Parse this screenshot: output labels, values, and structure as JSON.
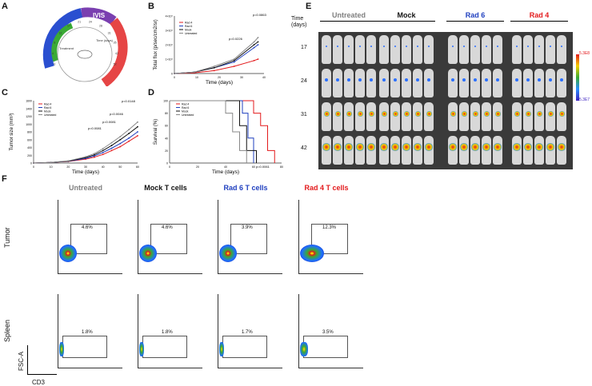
{
  "panels": {
    "a": "A",
    "b": "B",
    "c": "C",
    "d": "D",
    "e": "E",
    "f": "F"
  },
  "a": {
    "ivis": "IVIS",
    "ticks": [
      "0",
      "4",
      "8",
      "12",
      "17",
      "21",
      "24",
      "28",
      "31",
      "35",
      "42",
      "52"
    ],
    "treat": "Treatment",
    "days": "Time (days)"
  },
  "chart_b": {
    "type": "line",
    "title": "",
    "xlabel": "Time (days)",
    "ylabel": "Total flux (p/sec/cm2/sr)",
    "yticks": [
      "0",
      "1×10⁸",
      "2×10⁸",
      "3×10⁸",
      "4×10⁸"
    ],
    "xticks": [
      "0",
      "10",
      "20",
      "30",
      "40"
    ],
    "legend": [
      "Rad 4",
      "Rad 6",
      "Mock",
      "Untreated"
    ],
    "series": [
      {
        "name": "Rad 4",
        "color": "#e31a1c",
        "x": [
          0,
          10,
          20,
          30,
          40,
          42
        ],
        "y": [
          0,
          0.005,
          0.02,
          0.05,
          0.09,
          0.1
        ]
      },
      {
        "name": "Rad 6",
        "color": "#1f3fbf",
        "x": [
          0,
          10,
          20,
          30,
          40,
          42
        ],
        "y": [
          0,
          0.01,
          0.04,
          0.08,
          0.18,
          0.2
        ]
      },
      {
        "name": "Mock",
        "color": "#111111",
        "x": [
          0,
          10,
          20,
          30,
          40,
          42
        ],
        "y": [
          0,
          0.01,
          0.04,
          0.09,
          0.2,
          0.22
        ]
      },
      {
        "name": "Untreated",
        "color": "#888888",
        "x": [
          0,
          10,
          20,
          30,
          40,
          42
        ],
        "y": [
          0,
          0.01,
          0.05,
          0.1,
          0.22,
          0.25
        ]
      }
    ],
    "annotations": [
      "p=0.0226",
      "p=0.0863"
    ]
  },
  "chart_c": {
    "type": "line",
    "title": "",
    "xlabel": "Time (days)",
    "ylabel": "Tumor size (mm³)",
    "yticks": [
      "0",
      "200",
      "400",
      "600",
      "800",
      "1000",
      "1200",
      "1400",
      "1600"
    ],
    "xticks": [
      "0",
      "10",
      "20",
      "30",
      "40",
      "50",
      "60"
    ],
    "legend": [
      "Rad 4",
      "Rad 6",
      "Mock",
      "Untreated"
    ],
    "series": [
      {
        "name": "Rad 4",
        "color": "#e31a1c",
        "x": [
          0,
          10,
          20,
          30,
          35,
          40,
          45,
          50,
          55,
          60
        ],
        "y": [
          0,
          15,
          40,
          100,
          150,
          220,
          320,
          420,
          560,
          700
        ]
      },
      {
        "name": "Rad 6",
        "color": "#1f3fbf",
        "x": [
          0,
          10,
          20,
          30,
          35,
          40,
          45,
          50,
          55,
          60
        ],
        "y": [
          0,
          15,
          45,
          120,
          180,
          270,
          380,
          500,
          640,
          800
        ]
      },
      {
        "name": "Mock",
        "color": "#111111",
        "x": [
          0,
          10,
          20,
          30,
          35,
          40,
          45,
          50,
          55,
          60
        ],
        "y": [
          0,
          15,
          50,
          140,
          210,
          320,
          450,
          600,
          760,
          930
        ]
      },
      {
        "name": "Untreated",
        "color": "#888888",
        "x": [
          0,
          10,
          20,
          30,
          35,
          40,
          45,
          50,
          55,
          60
        ],
        "y": [
          0,
          15,
          55,
          160,
          240,
          370,
          520,
          680,
          860,
          1050
        ]
      }
    ],
    "annotations": [
      "p=0.0148",
      "p=0.0046",
      "p=0.0081",
      "p=0.0081"
    ]
  },
  "chart_d": {
    "type": "line",
    "title": "",
    "xlabel": "Time (days)",
    "ylabel": "Survival (%)",
    "yticks": [
      "0",
      "20",
      "40",
      "60",
      "80",
      "100"
    ],
    "xticks": [
      "0",
      "20",
      "40",
      "60",
      "80"
    ],
    "legend": [
      "Rad 4",
      "Rad 6",
      "Mock",
      "Untreated"
    ],
    "series": [
      {
        "name": "Rad 4",
        "color": "#e31a1c",
        "x": [
          0,
          55,
          60,
          65,
          70,
          75
        ],
        "y": [
          100,
          100,
          80,
          60,
          20,
          0
        ]
      },
      {
        "name": "Rad 6",
        "color": "#1f3fbf",
        "x": [
          0,
          48,
          52,
          56,
          60
        ],
        "y": [
          100,
          100,
          80,
          40,
          0
        ]
      },
      {
        "name": "Mock",
        "color": "#111111",
        "x": [
          0,
          45,
          50,
          55,
          62
        ],
        "y": [
          100,
          100,
          60,
          20,
          0
        ]
      },
      {
        "name": "Untreated",
        "color": "#888888",
        "x": [
          0,
          40,
          45,
          50,
          55
        ],
        "y": [
          100,
          80,
          50,
          20,
          0
        ]
      }
    ],
    "annotations": [
      "p=0.0061"
    ]
  },
  "e": {
    "groups": [
      {
        "name": "Untreated",
        "color": "#808080"
      },
      {
        "name": "Mock",
        "color": "#111111"
      },
      {
        "name": "Rad 6",
        "color": "#1f3fbf"
      },
      {
        "name": "Rad 4",
        "color": "#e31a1c"
      }
    ],
    "timeHeader": "Time\n(days)",
    "times": [
      "17",
      "24",
      "31",
      "42"
    ],
    "scaleMax": "5.3E8",
    "scaleMin": "5.3E7"
  },
  "f": {
    "cols": [
      {
        "name": "Untreated",
        "color": "#808080"
      },
      {
        "name": "Mock T cells",
        "color": "#111111"
      },
      {
        "name": "Rad 6 T cells",
        "color": "#1f3fbf"
      },
      {
        "name": "Rad 4 T cells",
        "color": "#e31a1c"
      }
    ],
    "rows": [
      "Tumor",
      "Spleen"
    ],
    "tumor": [
      "4.6%",
      "4.6%",
      "3.9%",
      "12.3%"
    ],
    "spleen": [
      "1.8%",
      "1.8%",
      "1.7%",
      "3.5%"
    ],
    "yaxis": "FSC-A",
    "xaxis": "CD3"
  }
}
